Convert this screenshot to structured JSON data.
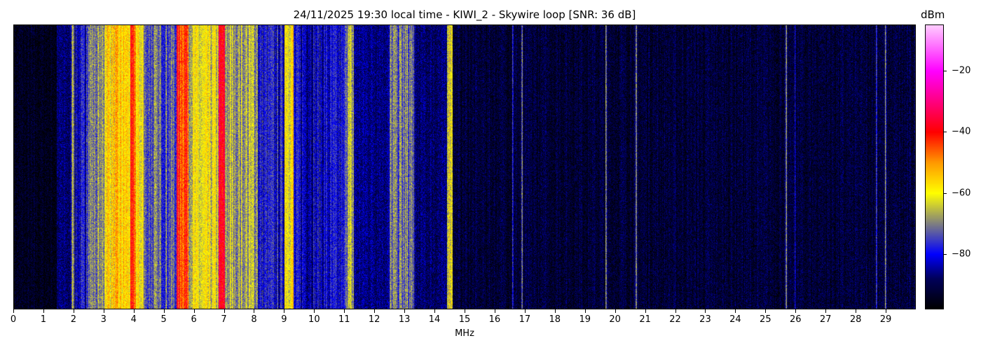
{
  "chart_data": {
    "type": "heatmap",
    "title": "24/11/2025 19:30 local time - KIWI_2 - Skywire loop [SNR: 36 dB]",
    "xlabel": "MHz",
    "ylabel": "",
    "xlim": [
      0,
      30
    ],
    "x_ticks": [
      "0",
      "1",
      "2",
      "3",
      "4",
      "5",
      "6",
      "7",
      "8",
      "9",
      "10",
      "11",
      "12",
      "13",
      "14",
      "15",
      "16",
      "17",
      "18",
      "19",
      "20",
      "21",
      "22",
      "23",
      "24",
      "25",
      "26",
      "27",
      "28",
      "29"
    ],
    "colorbar": {
      "label": "dBm",
      "range": [
        -98,
        -5
      ],
      "ticks": [
        "−20",
        "−40",
        "−60",
        "−80"
      ],
      "tick_values": [
        -20,
        -40,
        -60,
        -80
      ],
      "colormap_stops": [
        {
          "dBm": -98,
          "color": "#000000"
        },
        {
          "dBm": -88,
          "color": "#00005a"
        },
        {
          "dBm": -80,
          "color": "#0000ff"
        },
        {
          "dBm": -70,
          "color": "#808080"
        },
        {
          "dBm": -60,
          "color": "#ffff00"
        },
        {
          "dBm": -50,
          "color": "#ff9900"
        },
        {
          "dBm": -40,
          "color": "#ff0000"
        },
        {
          "dBm": -20,
          "color": "#ff00ff"
        },
        {
          "dBm": -5,
          "color": "#ffccff"
        }
      ]
    },
    "band_levels_dBm": [
      {
        "from": 0,
        "to": 1.4,
        "level": -95
      },
      {
        "from": 1.4,
        "to": 1.9,
        "level": -88
      },
      {
        "from": 1.9,
        "to": 2.0,
        "level": -66
      },
      {
        "from": 2.0,
        "to": 2.4,
        "level": -82
      },
      {
        "from": 2.4,
        "to": 3.0,
        "level": -70
      },
      {
        "from": 3.0,
        "to": 3.85,
        "level": -57
      },
      {
        "from": 3.85,
        "to": 4.05,
        "level": -46
      },
      {
        "from": 4.05,
        "to": 4.3,
        "level": -60
      },
      {
        "from": 4.3,
        "to": 5.4,
        "level": -73
      },
      {
        "from": 5.4,
        "to": 5.8,
        "level": -43
      },
      {
        "from": 5.8,
        "to": 6.8,
        "level": -63
      },
      {
        "from": 6.8,
        "to": 7.0,
        "level": -40
      },
      {
        "from": 7.0,
        "to": 8.1,
        "level": -67
      },
      {
        "from": 8.1,
        "to": 9.0,
        "level": -80
      },
      {
        "from": 9.0,
        "to": 9.3,
        "level": -58
      },
      {
        "from": 9.3,
        "to": 11.0,
        "level": -82
      },
      {
        "from": 11.0,
        "to": 11.3,
        "level": -68
      },
      {
        "from": 11.3,
        "to": 12.5,
        "level": -86
      },
      {
        "from": 12.5,
        "to": 13.3,
        "level": -72
      },
      {
        "from": 13.3,
        "to": 14.4,
        "level": -88
      },
      {
        "from": 14.4,
        "to": 14.6,
        "level": -60
      },
      {
        "from": 14.6,
        "to": 30,
        "level": -92
      }
    ],
    "narrow_signals": [
      {
        "mhz": 16.6,
        "level": -78
      },
      {
        "mhz": 16.9,
        "level": -75
      },
      {
        "mhz": 19.7,
        "level": -75
      },
      {
        "mhz": 20.7,
        "level": -76
      },
      {
        "mhz": 25.7,
        "level": -74
      },
      {
        "mhz": 26.0,
        "level": -80
      },
      {
        "mhz": 28.7,
        "level": -76
      },
      {
        "mhz": 29.0,
        "level": -72
      }
    ]
  }
}
